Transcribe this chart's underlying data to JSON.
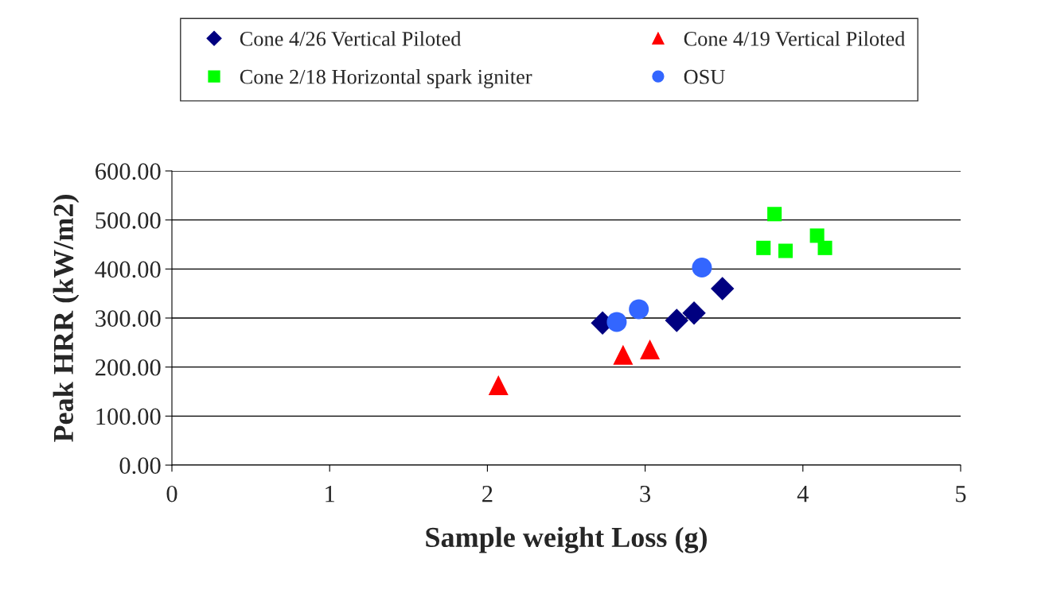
{
  "chart_data": {
    "type": "scatter",
    "xlabel": "Sample weight Loss (g)",
    "ylabel": "Peak HRR (kW/m2)",
    "xlim": [
      0,
      5
    ],
    "xticks": [
      0,
      1,
      2,
      3,
      4,
      5
    ],
    "ylim": [
      0,
      600
    ],
    "yticks": [
      {
        "value": 0,
        "label": "0.00"
      },
      {
        "value": 100,
        "label": "100.00"
      },
      {
        "value": 200,
        "label": "200.00"
      },
      {
        "value": 300,
        "label": "300.00"
      },
      {
        "value": 400,
        "label": "400.00"
      },
      {
        "value": 500,
        "label": "500.00"
      },
      {
        "value": 600,
        "label": "600.00"
      }
    ],
    "grid": "y",
    "legend": "top",
    "series": [
      {
        "name": "Cone 4/26 Vertical Piloted",
        "color": "#000080",
        "marker": "diamond",
        "x": [
          2.73,
          3.2,
          3.31,
          3.49
        ],
        "values": [
          290,
          295,
          310,
          360
        ]
      },
      {
        "name": "Cone 2/18 Horizontal spark igniter",
        "color": "#00ff00",
        "marker": "square",
        "x": [
          3.82,
          3.75,
          3.89,
          4.09,
          4.14
        ],
        "values": [
          512,
          443,
          437,
          468,
          443
        ]
      },
      {
        "name": "Cone 4/19 Vertical Piloted",
        "color": "#ff0000",
        "marker": "triangle",
        "x": [
          2.07,
          2.86,
          3.03
        ],
        "values": [
          163,
          225,
          236
        ]
      },
      {
        "name": "OSU",
        "color": "#3366ff",
        "marker": "circle",
        "x": [
          2.82,
          2.96,
          3.36
        ],
        "values": [
          292,
          318,
          403
        ]
      }
    ]
  }
}
